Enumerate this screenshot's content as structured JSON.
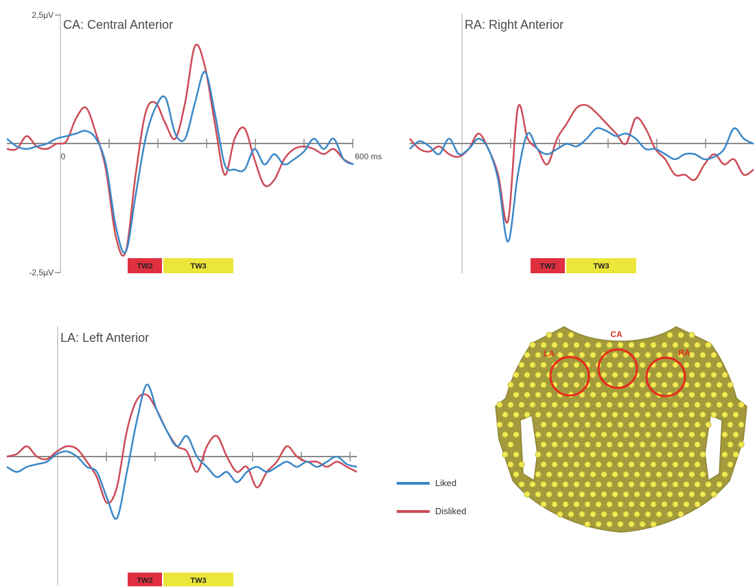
{
  "colors": {
    "liked": "#3a87c8",
    "disliked": "#cc4a55",
    "tw2": "#e03040",
    "tw3": "#ece63a",
    "head": "#a39a3c",
    "electrode": "#f1ea52",
    "roi": "#e8281c"
  },
  "y_labels": {
    "top": "2,5μV",
    "bottom": "-2,5μV"
  },
  "x_labels": {
    "zero": "0",
    "end": "600 ms"
  },
  "time_windows": {
    "tw2": "TW2",
    "tw3": "TW3"
  },
  "legend": {
    "liked": "Liked",
    "disliked": "Disliked"
  },
  "head_map": {
    "labels": {
      "la": "LA",
      "ca": "CA",
      "ra": "RA"
    }
  },
  "chart_data": [
    {
      "type": "line",
      "title": "CA: Central Anterior",
      "xlabel": "ms",
      "ylabel": "μV",
      "xlim": [
        -100,
        600
      ],
      "ylim": [
        -2.5,
        2.5
      ],
      "time_windows_ms": {
        "TW2": [
          130,
          200
        ],
        "TW3": [
          200,
          350
        ]
      },
      "series": [
        {
          "name": "Liked",
          "x": [
            -100,
            -80,
            -60,
            -40,
            -20,
            0,
            20,
            40,
            60,
            80,
            100,
            120,
            140,
            160,
            180,
            200,
            220,
            240,
            260,
            280,
            300,
            320,
            340,
            360,
            380,
            400,
            420,
            440,
            460,
            480,
            500,
            520,
            540,
            560,
            580,
            600
          ],
          "values": [
            0.1,
            -0.05,
            -0.1,
            -0.05,
            0.0,
            0.1,
            0.15,
            0.2,
            0.25,
            0.1,
            -0.4,
            -1.6,
            -2.1,
            -1.0,
            0.1,
            0.7,
            0.9,
            0.2,
            0.1,
            0.8,
            1.4,
            0.6,
            -0.4,
            -0.5,
            -0.5,
            -0.1,
            -0.4,
            -0.2,
            -0.4,
            -0.3,
            -0.15,
            0.1,
            -0.1,
            0.1,
            -0.3,
            -0.4
          ]
        },
        {
          "name": "Disliked",
          "x": [
            -100,
            -80,
            -60,
            -40,
            -20,
            0,
            20,
            40,
            60,
            80,
            100,
            120,
            140,
            160,
            180,
            200,
            220,
            240,
            260,
            280,
            300,
            320,
            340,
            360,
            380,
            400,
            420,
            440,
            460,
            480,
            500,
            520,
            540,
            560,
            580,
            600
          ],
          "values": [
            -0.1,
            -0.1,
            0.15,
            -0.05,
            -0.1,
            0.0,
            0.05,
            0.5,
            0.7,
            0.2,
            -0.5,
            -1.8,
            -2.1,
            -0.6,
            0.6,
            0.8,
            0.4,
            0.1,
            0.8,
            1.9,
            1.5,
            0.4,
            -0.6,
            0.1,
            0.3,
            -0.3,
            -0.8,
            -0.7,
            -0.3,
            -0.1,
            -0.05,
            -0.1,
            -0.2,
            -0.1,
            -0.3,
            -0.4
          ]
        }
      ]
    },
    {
      "type": "line",
      "title": "RA: Right Anterior",
      "xlabel": "ms",
      "ylabel": "μV",
      "xlim": [
        -100,
        600
      ],
      "ylim": [
        -2.5,
        2.5
      ],
      "time_windows_ms": {
        "TW2": [
          130,
          200
        ],
        "TW3": [
          200,
          350
        ]
      },
      "series": [
        {
          "name": "Liked",
          "x": [
            -100,
            -80,
            -60,
            -40,
            -20,
            0,
            20,
            40,
            60,
            80,
            100,
            120,
            140,
            160,
            180,
            200,
            220,
            240,
            260,
            280,
            300,
            320,
            340,
            360,
            380,
            400,
            420,
            440,
            460,
            480,
            500,
            520,
            540,
            560,
            580,
            600
          ],
          "values": [
            -0.1,
            0.05,
            -0.05,
            -0.2,
            0.1,
            -0.2,
            -0.1,
            0.1,
            -0.1,
            -0.7,
            -1.9,
            -0.6,
            0.2,
            -0.1,
            -0.2,
            -0.1,
            0.0,
            -0.05,
            0.1,
            0.3,
            0.25,
            0.15,
            0.2,
            0.1,
            -0.1,
            -0.1,
            -0.2,
            -0.3,
            -0.2,
            -0.2,
            -0.3,
            -0.25,
            -0.1,
            0.3,
            0.1,
            0.0
          ]
        },
        {
          "name": "Disliked",
          "x": [
            -100,
            -80,
            -60,
            -40,
            -20,
            0,
            20,
            40,
            60,
            80,
            100,
            120,
            140,
            160,
            180,
            200,
            220,
            240,
            260,
            280,
            300,
            320,
            340,
            360,
            380,
            400,
            420,
            440,
            460,
            480,
            500,
            520,
            540,
            560,
            580,
            600
          ],
          "values": [
            0.1,
            -0.1,
            -0.15,
            -0.05,
            -0.2,
            -0.25,
            -0.1,
            0.2,
            -0.1,
            -0.6,
            -1.5,
            0.7,
            0.1,
            -0.1,
            -0.4,
            0.1,
            0.4,
            0.7,
            0.75,
            0.6,
            0.4,
            0.2,
            0.0,
            0.5,
            0.3,
            -0.1,
            -0.3,
            -0.6,
            -0.6,
            -0.7,
            -0.4,
            -0.2,
            -0.4,
            -0.3,
            -0.6,
            -0.5
          ]
        }
      ]
    },
    {
      "type": "line",
      "title": "LA: Left Anterior",
      "xlabel": "ms",
      "ylabel": "μV",
      "xlim": [
        -100,
        600
      ],
      "ylim": [
        -2.5,
        2.5
      ],
      "time_windows_ms": {
        "TW2": [
          130,
          200
        ],
        "TW3": [
          200,
          350
        ]
      },
      "series": [
        {
          "name": "Liked",
          "x": [
            -100,
            -80,
            -60,
            -40,
            -20,
            0,
            20,
            40,
            60,
            80,
            100,
            120,
            140,
            160,
            180,
            200,
            220,
            240,
            260,
            280,
            300,
            320,
            340,
            360,
            380,
            400,
            420,
            440,
            460,
            480,
            500,
            520,
            540,
            560,
            580,
            600
          ],
          "values": [
            -0.2,
            -0.3,
            -0.2,
            -0.15,
            -0.1,
            0.05,
            0.1,
            0.0,
            -0.2,
            -0.3,
            -0.8,
            -1.2,
            -0.3,
            0.7,
            1.4,
            0.9,
            0.5,
            0.2,
            0.4,
            0.0,
            -0.2,
            -0.4,
            -0.3,
            -0.5,
            -0.3,
            -0.2,
            -0.3,
            -0.2,
            -0.1,
            -0.2,
            -0.1,
            -0.2,
            -0.1,
            0.0,
            -0.15,
            -0.2
          ]
        },
        {
          "name": "Disliked",
          "x": [
            -100,
            -80,
            -60,
            -40,
            -20,
            0,
            20,
            40,
            60,
            80,
            100,
            120,
            140,
            160,
            180,
            200,
            220,
            240,
            260,
            280,
            300,
            320,
            340,
            360,
            380,
            400,
            420,
            440,
            460,
            480,
            500,
            520,
            540,
            560,
            580,
            600
          ],
          "values": [
            0.0,
            0.05,
            0.2,
            0.0,
            -0.05,
            0.1,
            0.2,
            0.15,
            -0.1,
            -0.4,
            -0.9,
            -0.6,
            0.5,
            1.1,
            1.2,
            0.9,
            0.5,
            0.2,
            0.1,
            -0.3,
            0.2,
            0.4,
            0.0,
            -0.3,
            -0.2,
            -0.6,
            -0.3,
            -0.1,
            0.2,
            0.0,
            -0.1,
            -0.1,
            -0.2,
            -0.1,
            -0.2,
            -0.3
          ]
        }
      ]
    }
  ]
}
